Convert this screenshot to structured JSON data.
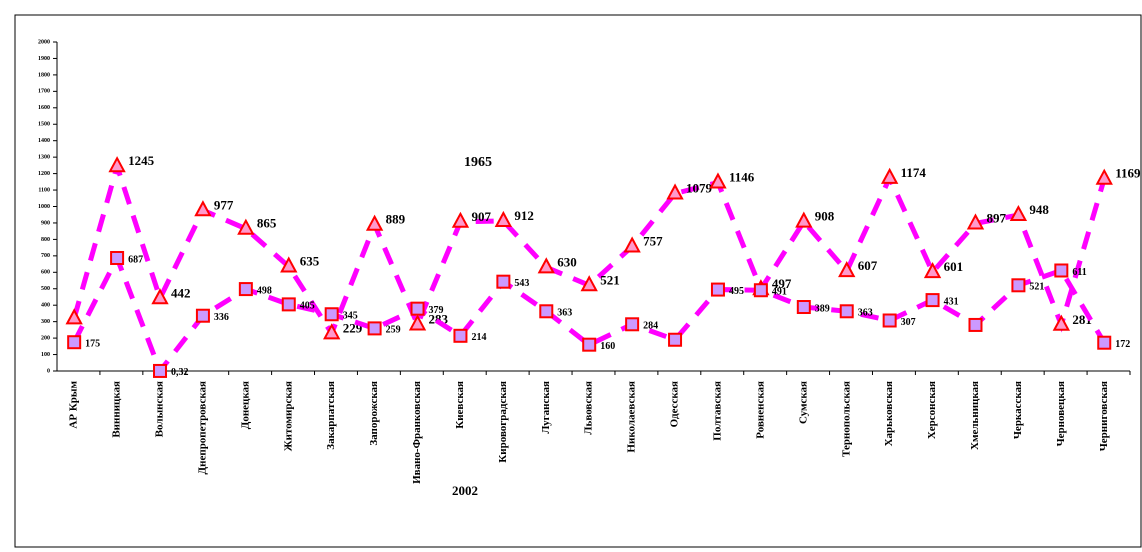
{
  "chart_data": {
    "type": "line",
    "x_label": "2002",
    "annotation": "1965",
    "categories": [
      "АР Крым",
      "Винницкая",
      "Волынская",
      "Днепропетровская",
      "Донецкая",
      "Житомирская",
      "Закарпатская",
      "Запорожская",
      "Ивано-Франковская",
      "Киевская",
      "Кировоградская",
      "Луганская",
      "Львовская",
      "Николаевская",
      "Одесская",
      "Полтавская",
      "Ровненская",
      "Сумская",
      "Тернопольская",
      "Харьковская",
      "Херсонская",
      "Хмельницкая",
      "Черкасская",
      "Черновецкая",
      "Черниговская"
    ],
    "series": [
      {
        "marker": "triangle",
        "color": "#ff0000",
        "fill": "#ff99cc",
        "line_color": "#ff00ff",
        "values": [
          320,
          1245,
          442,
          977,
          865,
          635,
          229,
          889,
          283,
          907,
          912,
          630,
          521,
          757,
          1079,
          1146,
          497,
          908,
          607,
          1174,
          601,
          897,
          948,
          281,
          1169
        ],
        "value_labels": [
          null,
          "1245",
          "442",
          "977",
          "865",
          "635",
          "229",
          "889",
          "283",
          "907",
          "912",
          "630",
          "521",
          "757",
          "1079",
          "1146",
          "497",
          "908",
          "607",
          "1174",
          "601",
          "897",
          "948",
          "281",
          "1169"
        ]
      },
      {
        "marker": "square",
        "color": "#ff0000",
        "fill": "#cc99ff",
        "line_color": "#ff00ff",
        "values": [
          175,
          687,
          0.32,
          336,
          498,
          405,
          345,
          259,
          379,
          214,
          543,
          363,
          160,
          284,
          190,
          495,
          491,
          389,
          363,
          307,
          431,
          280,
          521,
          611,
          172
        ],
        "value_labels": [
          "175",
          "687",
          "0,32",
          "336",
          "498",
          "405",
          "345",
          "259",
          "379",
          "214",
          "543",
          "363",
          "160",
          "284",
          null,
          "495",
          "491",
          "389",
          "363",
          "307",
          "431",
          null,
          "521",
          "611",
          "172"
        ]
      }
    ],
    "ylim": [
      0,
      2000
    ],
    "yticks": [
      0,
      100,
      200,
      300,
      400,
      500,
      600,
      700,
      800,
      900,
      1000,
      1100,
      1200,
      1300,
      1400,
      1500,
      1600,
      1700,
      1800,
      1900,
      2000
    ]
  }
}
